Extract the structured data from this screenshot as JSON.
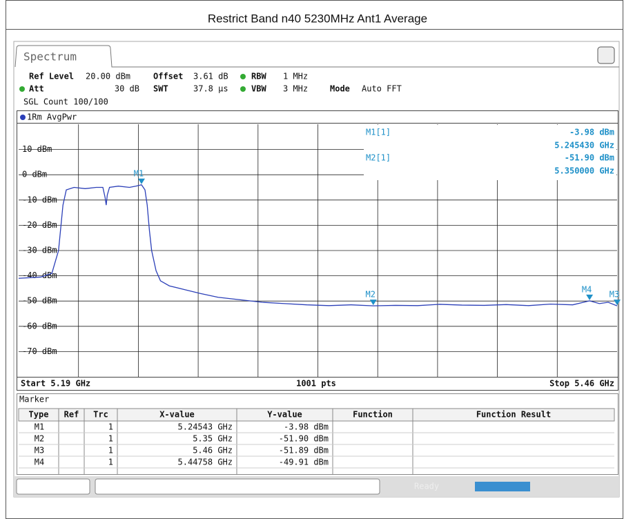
{
  "header": {
    "title": "Restrict Band n40 5230MHz Ant1 Average"
  },
  "tab": "Spectrum",
  "settings": {
    "ref_level_label": "Ref Level",
    "ref_level": "20.00 dBm",
    "offset_label": "Offset",
    "offset": "3.61 dB",
    "rbw_label": "RBW",
    "rbw": "1 MHz",
    "att_label": "Att",
    "att": "30 dB",
    "swt_label": "SWT",
    "swt": "37.8 µs",
    "vbw_label": "VBW",
    "vbw": "3 MHz",
    "mode_label": "Mode",
    "mode": "Auto FFT",
    "count": "SGL Count 100/100"
  },
  "trace_label": "1Rm AvgPwr",
  "readout": [
    {
      "name": "M1[1]",
      "level": "-3.98 dBm",
      "freq": "5.245430 GHz"
    },
    {
      "name": "M2[1]",
      "level": "-51.90 dBm",
      "freq": "5.350000 GHz"
    }
  ],
  "chart_data": {
    "type": "line",
    "x": [
      5.19,
      5.2,
      5.205,
      5.208,
      5.21,
      5.2115,
      5.215,
      5.22,
      5.225,
      5.228,
      5.229,
      5.2295,
      5.23,
      5.231,
      5.235,
      5.24,
      5.243,
      5.24543,
      5.247,
      5.248,
      5.249,
      5.25,
      5.252,
      5.254,
      5.258,
      5.265,
      5.272,
      5.28,
      5.29,
      5.3,
      5.31,
      5.32,
      5.33,
      5.34,
      5.35,
      5.36,
      5.37,
      5.38,
      5.39,
      5.4,
      5.41,
      5.42,
      5.43,
      5.44,
      5.44758,
      5.452,
      5.456,
      5.46
    ],
    "series": [
      {
        "name": "1Rm AvgPwr",
        "color": "#2b3fb8",
        "values": [
          -41,
          -40.5,
          -39,
          -30,
          -12,
          -6,
          -5,
          -5.5,
          -5,
          -5,
          -9,
          -12,
          -8,
          -5,
          -4.5,
          -5,
          -4.5,
          -3.98,
          -6,
          -12,
          -22,
          -30,
          -38,
          -42,
          -44,
          -45.5,
          -47,
          -48.5,
          -49.5,
          -50.5,
          -51,
          -51.5,
          -51.8,
          -51.5,
          -51.9,
          -51.7,
          -51.8,
          -51.3,
          -51.6,
          -51.7,
          -51.4,
          -51.8,
          -51.2,
          -51.5,
          -49.91,
          -51,
          -50.5,
          -51.89
        ]
      }
    ],
    "xlim": [
      5.19,
      5.46
    ],
    "ylim": [
      -80,
      20
    ],
    "yticks": [
      {
        "value": 10,
        "label": "10 dBm"
      },
      {
        "value": 0,
        "label": "0 dBm"
      },
      {
        "value": -10,
        "label": "-10 dBm"
      },
      {
        "value": -20,
        "label": "-20 dBm"
      },
      {
        "value": -30,
        "label": "-30 dBm"
      },
      {
        "value": -40,
        "label": "-40 dBm"
      },
      {
        "value": -50,
        "label": "-50 dBm"
      },
      {
        "value": -60,
        "label": "-60 dBm"
      },
      {
        "value": -70,
        "label": "-70 dBm"
      }
    ],
    "grid": true,
    "markers": [
      {
        "name": "M1",
        "x": 5.24543,
        "y": -3.98
      },
      {
        "name": "M2",
        "x": 5.35,
        "y": -51.9
      },
      {
        "name": "M3",
        "x": 5.46,
        "y": -51.89
      },
      {
        "name": "M4",
        "x": 5.44758,
        "y": -49.91
      }
    ],
    "marker_color": "#1e90c8"
  },
  "footer": {
    "start": "Start 5.19 GHz",
    "points": "1001 pts",
    "stop": "Stop 5.46 GHz"
  },
  "table": {
    "title": "Marker",
    "columns": [
      "Type",
      "Ref",
      "Trc",
      "X-value",
      "Y-value",
      "Function",
      "Function Result"
    ],
    "rows": [
      [
        "M1",
        "",
        "1",
        "5.24543 GHz",
        "-3.98 dBm",
        "",
        ""
      ],
      [
        "M2",
        "",
        "1",
        "5.35 GHz",
        "-51.90 dBm",
        "",
        ""
      ],
      [
        "M3",
        "",
        "1",
        "5.46 GHz",
        "-51.89 dBm",
        "",
        ""
      ],
      [
        "M4",
        "",
        "1",
        "5.44758 GHz",
        "-49.91 dBm",
        "",
        ""
      ]
    ]
  },
  "status": "Ready"
}
